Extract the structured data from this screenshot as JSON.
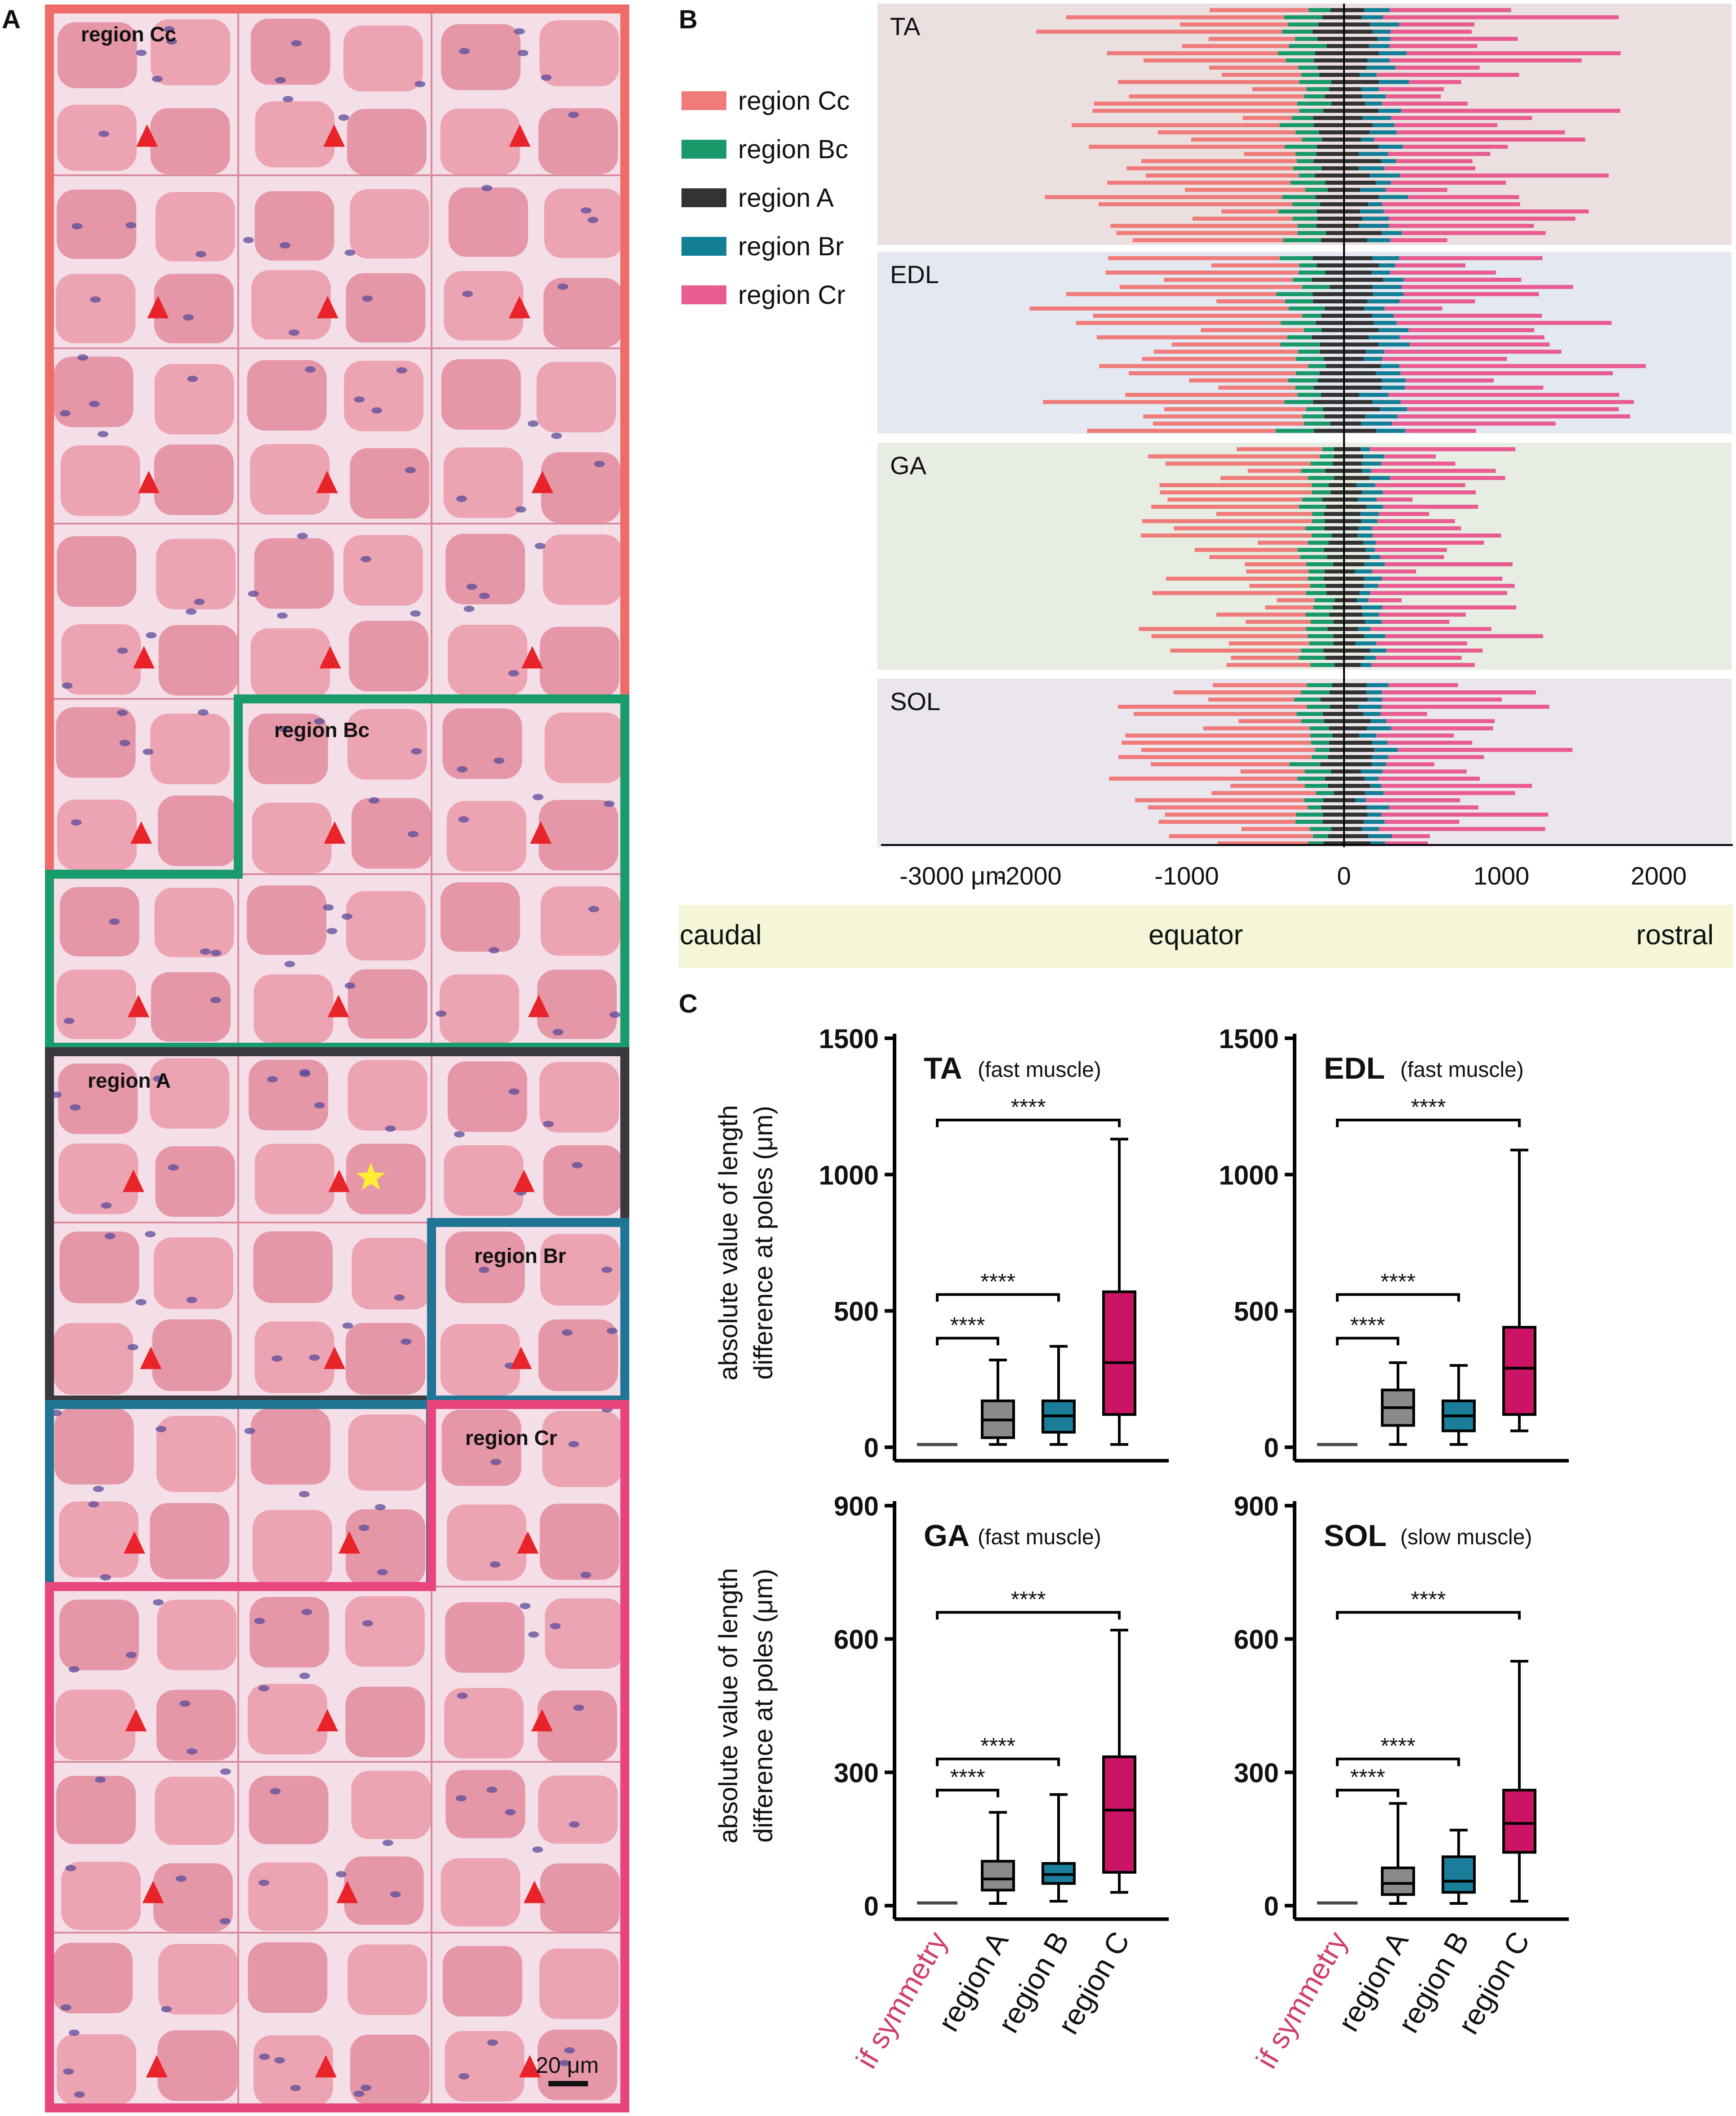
{
  "panels": {
    "a_label": "A",
    "b_label": "B",
    "c_label": "C"
  },
  "panel_a": {
    "region_labels": [
      "region Cc",
      "region Bc",
      "region A",
      "region Br",
      "region Cr"
    ],
    "scale_bar": "20 μm",
    "colors": {
      "region_Cc": "#ee6b68",
      "region_Bc": "#1a9b6c",
      "region_A": "#3b3840",
      "region_Br": "#1f7593",
      "region_Cr": "#e8447e",
      "tissue": "#e79aab",
      "fiber": "#eda4b2",
      "marker": "#e8242a",
      "star": "#ffee33"
    }
  },
  "panel_b": {
    "legend": [
      {
        "label": "region Cc",
        "color": "#ef7b7b"
      },
      {
        "label": "region Bc",
        "color": "#19996a"
      },
      {
        "label": "region A",
        "color": "#333333"
      },
      {
        "label": "region Br",
        "color": "#137f96"
      },
      {
        "label": "region Cr",
        "color": "#e85c91"
      }
    ],
    "muscles": [
      {
        "name": "TA",
        "bg": "#ebe0df"
      },
      {
        "name": "EDL",
        "bg": "#e4e8f0"
      },
      {
        "name": "GA",
        "bg": "#e7ede2"
      },
      {
        "name": "SOL",
        "bg": "#ebe5ee"
      }
    ],
    "axis": {
      "ticks": [
        -3000,
        -2000,
        -1000,
        0,
        1000,
        2000
      ],
      "tick_labels": [
        "-3000 μm",
        "-2000",
        "-1000",
        "0",
        "1000",
        "2000"
      ]
    },
    "orientation_bar": {
      "left": "caudal",
      "center": "equator",
      "right": "rostral",
      "bg": "#f5f5d8"
    }
  },
  "chart_data": [
    {
      "type": "box",
      "title": "TA",
      "subtitle": "(fast muscle)",
      "ylabel": "absolute value of length difference at poles (μm)",
      "ylim": [
        0,
        1500
      ],
      "yticks": [
        0,
        500,
        1000,
        1500
      ],
      "categories": [
        "if symmetry",
        "region A",
        "region B",
        "region C"
      ],
      "boxes": [
        {
          "min": 0,
          "q1": 0,
          "median": 0,
          "q3": 0,
          "max": 0
        },
        {
          "min": 10,
          "q1": 35,
          "median": 100,
          "q3": 170,
          "max": 320
        },
        {
          "min": 10,
          "q1": 55,
          "median": 115,
          "q3": 170,
          "max": 370
        },
        {
          "min": 10,
          "q1": 120,
          "median": 310,
          "q3": 570,
          "max": 1130
        }
      ],
      "significance": [
        {
          "from": 0,
          "to": 1,
          "label": "****"
        },
        {
          "from": 0,
          "to": 2,
          "label": "****"
        },
        {
          "from": 0,
          "to": 3,
          "label": "****"
        }
      ]
    },
    {
      "type": "box",
      "title": "EDL",
      "subtitle": "(fast muscle)",
      "ylabel": "",
      "ylim": [
        0,
        1500
      ],
      "yticks": [
        0,
        500,
        1000,
        1500
      ],
      "categories": [
        "if symmetry",
        "region A",
        "region B",
        "region C"
      ],
      "boxes": [
        {
          "min": 0,
          "q1": 0,
          "median": 0,
          "q3": 0,
          "max": 0
        },
        {
          "min": 10,
          "q1": 80,
          "median": 145,
          "q3": 210,
          "max": 310
        },
        {
          "min": 10,
          "q1": 60,
          "median": 115,
          "q3": 170,
          "max": 300
        },
        {
          "min": 60,
          "q1": 120,
          "median": 290,
          "q3": 440,
          "max": 1090
        }
      ],
      "significance": [
        {
          "from": 0,
          "to": 1,
          "label": "****"
        },
        {
          "from": 0,
          "to": 2,
          "label": "****"
        },
        {
          "from": 0,
          "to": 3,
          "label": "****"
        }
      ]
    },
    {
      "type": "box",
      "title": "GA",
      "subtitle": "(fast muscle)",
      "ylabel": "absolute value of length difference at poles (μm)",
      "ylim": [
        0,
        900
      ],
      "yticks": [
        0,
        300,
        600,
        900
      ],
      "categories": [
        "if symmetry",
        "region A",
        "region B",
        "region C"
      ],
      "boxes": [
        {
          "min": 0,
          "q1": 0,
          "median": 0,
          "q3": 0,
          "max": 0
        },
        {
          "min": 5,
          "q1": 35,
          "median": 60,
          "q3": 100,
          "max": 210
        },
        {
          "min": 10,
          "q1": 50,
          "median": 70,
          "q3": 95,
          "max": 250
        },
        {
          "min": 30,
          "q1": 75,
          "median": 215,
          "q3": 335,
          "max": 620
        }
      ],
      "significance": [
        {
          "from": 0,
          "to": 1,
          "label": "****"
        },
        {
          "from": 0,
          "to": 2,
          "label": "****"
        },
        {
          "from": 0,
          "to": 3,
          "label": "****"
        }
      ]
    },
    {
      "type": "box",
      "title": "SOL",
      "subtitle": "(slow muscle)",
      "ylabel": "",
      "ylim": [
        0,
        900
      ],
      "yticks": [
        0,
        300,
        600,
        900
      ],
      "categories": [
        "if symmetry",
        "region A",
        "region B",
        "region C"
      ],
      "boxes": [
        {
          "min": 0,
          "q1": 0,
          "median": 0,
          "q3": 0,
          "max": 0
        },
        {
          "min": 5,
          "q1": 25,
          "median": 50,
          "q3": 85,
          "max": 230
        },
        {
          "min": 5,
          "q1": 30,
          "median": 55,
          "q3": 110,
          "max": 170
        },
        {
          "min": 10,
          "q1": 120,
          "median": 185,
          "q3": 260,
          "max": 550
        }
      ],
      "significance": [
        {
          "from": 0,
          "to": 1,
          "label": "****"
        },
        {
          "from": 0,
          "to": 2,
          "label": "****"
        },
        {
          "from": 0,
          "to": 3,
          "label": "****"
        }
      ]
    }
  ],
  "box_colors": [
    "#4a4a4a",
    "#8a8a8a",
    "#1a7d99",
    "#cc1466"
  ],
  "symmetry_label_color": "#cf3f6c"
}
